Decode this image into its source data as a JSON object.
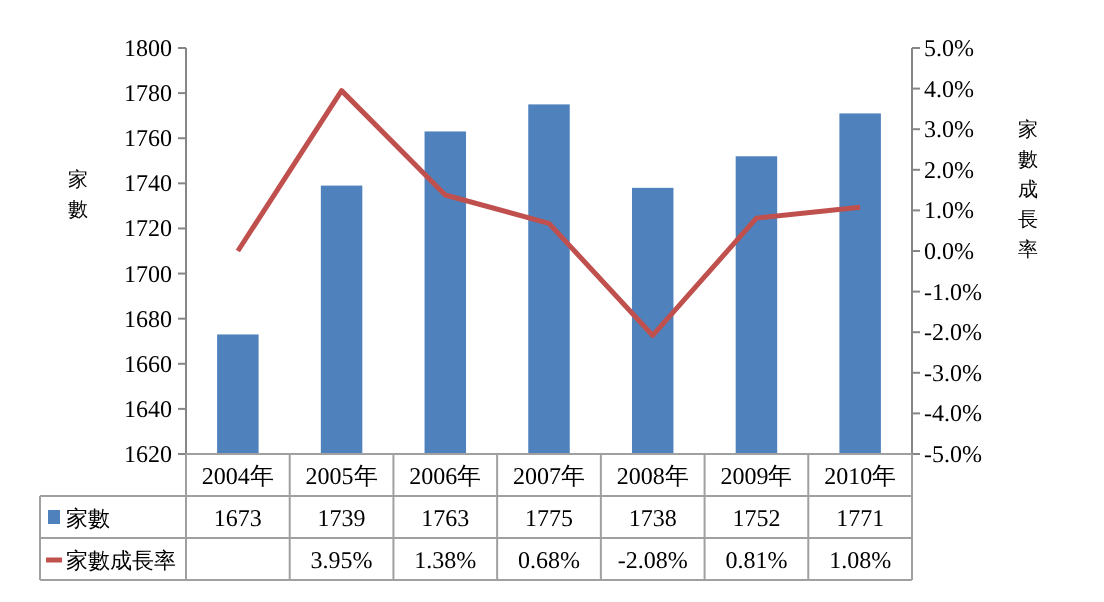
{
  "chart_data": {
    "type": "bar",
    "categories": [
      "2004年",
      "2005年",
      "2006年",
      "2007年",
      "2008年",
      "2009年",
      "2010年"
    ],
    "ylabel": "家數",
    "y2label": "家數成長率",
    "ylim": [
      1620,
      1800
    ],
    "yticks": [
      1620,
      1640,
      1660,
      1680,
      1700,
      1720,
      1740,
      1760,
      1780,
      1800
    ],
    "y2lim": [
      -5,
      5
    ],
    "y2ticks": [
      {
        "value": -5,
        "label": "-5.0%"
      },
      {
        "value": -4,
        "label": "-4.0%"
      },
      {
        "value": -3,
        "label": "-3.0%"
      },
      {
        "value": -2,
        "label": "-2.0%"
      },
      {
        "value": -1,
        "label": "-1.0%"
      },
      {
        "value": 0,
        "label": "0.0%"
      },
      {
        "value": 1,
        "label": "1.0%"
      },
      {
        "value": 2,
        "label": "2.0%"
      },
      {
        "value": 3,
        "label": "3.0%"
      },
      {
        "value": 4,
        "label": "4.0%"
      },
      {
        "value": 5,
        "label": "5.0%"
      }
    ],
    "grid": false,
    "legend": "bottom left",
    "series": [
      {
        "name": "家數",
        "color": "#4f81bd",
        "values": [
          1673,
          1739,
          1763,
          1775,
          1738,
          1752,
          1771
        ],
        "value_labels": [
          "1673",
          "1739",
          "1763",
          "1775",
          "1738",
          "1752",
          "1771"
        ]
      },
      {
        "name": "家數成長率",
        "type": "line",
        "axis": "y2",
        "color": "#c0504d",
        "values": [
          0,
          3.95,
          1.38,
          0.68,
          -2.08,
          0.81,
          1.08
        ],
        "value_labels": [
          null,
          "3.95%",
          "1.38%",
          "0.68%",
          "-2.08%",
          "0.81%",
          "1.08%"
        ]
      }
    ]
  }
}
